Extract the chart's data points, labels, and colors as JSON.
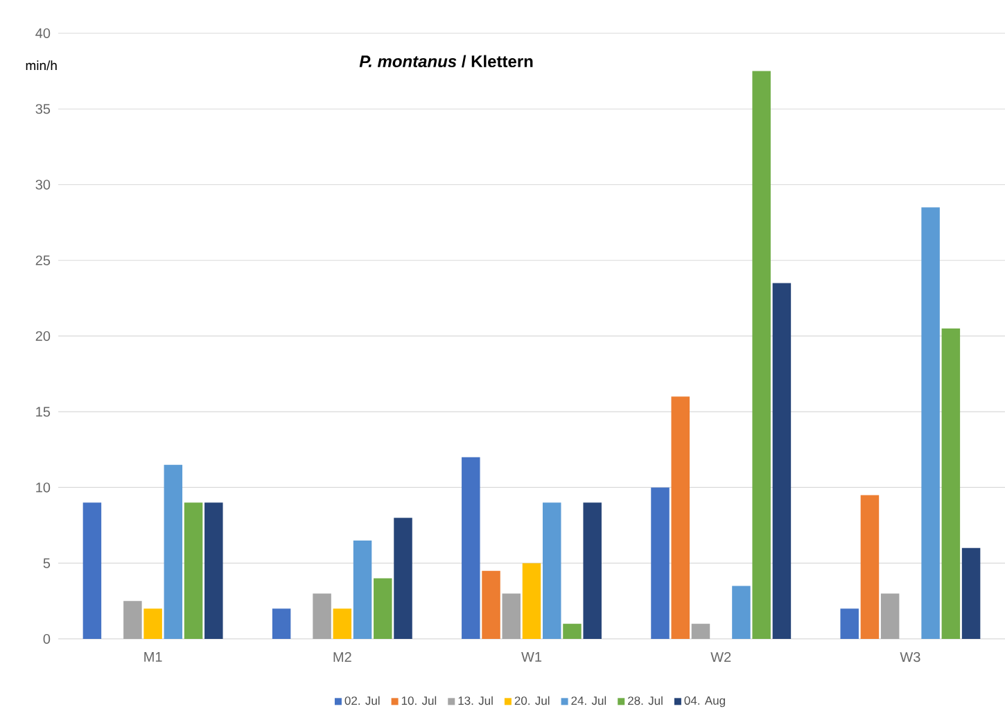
{
  "chart_data": {
    "type": "bar",
    "title": "*P. montanus* / Klettern",
    "ylabel": "min/h",
    "categories": [
      "M1",
      "M2",
      "W1",
      "W2",
      "W3"
    ],
    "series": [
      {
        "name": "02. Jul",
        "color": "#4472c4",
        "values": [
          9,
          2,
          12,
          10,
          2
        ]
      },
      {
        "name": "10. Jul",
        "color": "#ed7d31",
        "values": [
          null,
          null,
          4.5,
          16,
          9.5
        ]
      },
      {
        "name": "13. Jul",
        "color": "#a5a5a5",
        "values": [
          2.5,
          3,
          3,
          1,
          3
        ]
      },
      {
        "name": "20. Jul",
        "color": "#ffc000",
        "values": [
          2,
          2,
          5,
          null,
          null
        ]
      },
      {
        "name": "24. Jul",
        "color": "#5b9bd5",
        "values": [
          11.5,
          6.5,
          9,
          3.5,
          28.5
        ]
      },
      {
        "name": "28. Jul",
        "color": "#70ad47",
        "values": [
          9,
          4,
          1,
          37.5,
          20.5
        ]
      },
      {
        "name": "04. Aug",
        "color": "#264478",
        "values": [
          9,
          8,
          9,
          23.5,
          6
        ]
      }
    ],
    "ylim": [
      0,
      40
    ],
    "yticks": [
      0,
      5,
      10,
      15,
      20,
      25,
      30,
      35,
      40
    ],
    "grid": "y",
    "legend": "bottom"
  }
}
